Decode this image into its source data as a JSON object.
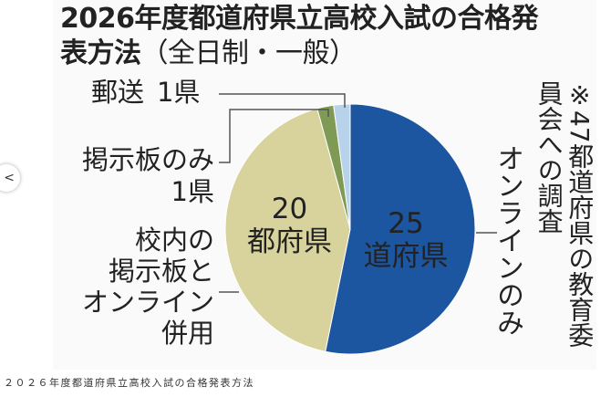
{
  "chart_data": {
    "type": "pie",
    "title": "2026年度都道府県立高校入試の合格発表方法",
    "subtitle": "（全日制・一般）",
    "note": "※47都道府県の教育委員会への調査",
    "categories": [
      "オンラインのみ",
      "校内の\n掲示板と\nオンライン\n併用",
      "掲示板のみ",
      "郵送"
    ],
    "values": [
      25,
      20,
      1,
      1
    ],
    "value_labels": [
      "25\n道府県",
      "20\n都府県",
      "1県",
      "1県"
    ],
    "colors": [
      "#1c55a0",
      "#d8d39c",
      "#7e9a55",
      "#b8d2ea"
    ]
  },
  "caption": "２０２６年度都道府県立高校入試の合格発表方法"
}
